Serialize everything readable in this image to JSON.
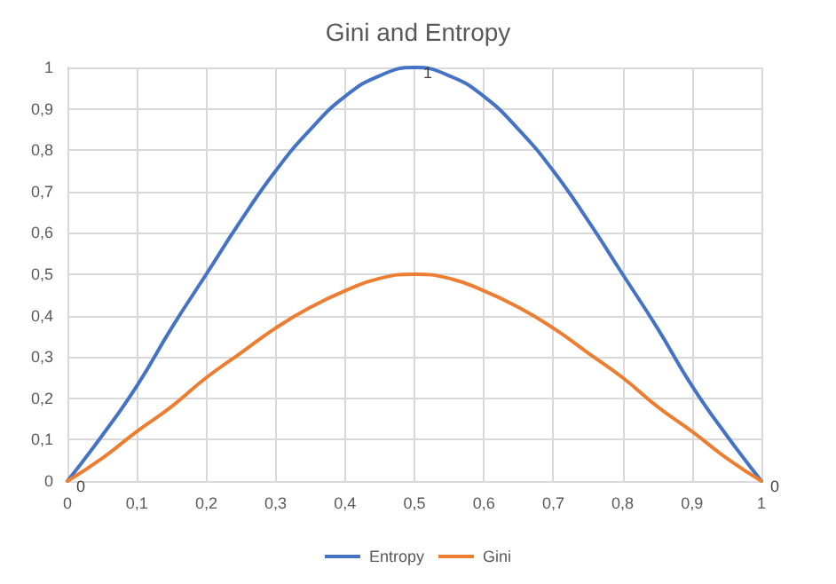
{
  "chart_data": {
    "type": "line",
    "title": "Gini and Entropy",
    "x": [
      0,
      0.05,
      0.1,
      0.15,
      0.2,
      0.25,
      0.3,
      0.35,
      0.4,
      0.45,
      0.5,
      0.55,
      0.6,
      0.65,
      0.7,
      0.75,
      0.8,
      0.85,
      0.9,
      0.95,
      1
    ],
    "series": [
      {
        "name": "Entropy",
        "color": "#4472c4",
        "values": [
          0,
          0.11,
          0.23,
          0.37,
          0.5,
          0.63,
          0.75,
          0.85,
          0.93,
          0.98,
          1,
          0.98,
          0.93,
          0.85,
          0.75,
          0.63,
          0.5,
          0.37,
          0.23,
          0.11,
          0
        ],
        "value_labels": [
          "0",
          null,
          null,
          null,
          null,
          null,
          null,
          null,
          null,
          null,
          "1",
          null,
          null,
          null,
          null,
          null,
          null,
          null,
          null,
          null,
          "0"
        ]
      },
      {
        "name": "Gini",
        "color": "#ed7d31",
        "values": [
          0,
          0.055,
          0.12,
          0.18,
          0.25,
          0.31,
          0.37,
          0.42,
          0.46,
          0.49,
          0.5,
          0.49,
          0.46,
          0.42,
          0.37,
          0.31,
          0.25,
          0.18,
          0.12,
          0.055,
          0
        ]
      }
    ],
    "xlim": [
      0,
      1
    ],
    "xticks": [
      {
        "value": 0,
        "label": "0"
      },
      {
        "value": 0.1,
        "label": "0,1"
      },
      {
        "value": 0.2,
        "label": "0,2"
      },
      {
        "value": 0.3,
        "label": "0,3"
      },
      {
        "value": 0.4,
        "label": "0,4"
      },
      {
        "value": 0.5,
        "label": "0,5"
      },
      {
        "value": 0.6,
        "label": "0,6"
      },
      {
        "value": 0.7,
        "label": "0,7"
      },
      {
        "value": 0.8,
        "label": "0,8"
      },
      {
        "value": 0.9,
        "label": "0,9"
      },
      {
        "value": 1,
        "label": "1"
      }
    ],
    "ylim": [
      0,
      1
    ],
    "yticks": [
      {
        "value": 0,
        "label": "0"
      },
      {
        "value": 0.1,
        "label": "0,1"
      },
      {
        "value": 0.2,
        "label": "0,2"
      },
      {
        "value": 0.3,
        "label": "0,3"
      },
      {
        "value": 0.4,
        "label": "0,4"
      },
      {
        "value": 0.5,
        "label": "0,5"
      },
      {
        "value": 0.6,
        "label": "0,6"
      },
      {
        "value": 0.7,
        "label": "0,7"
      },
      {
        "value": 0.8,
        "label": "0,8"
      },
      {
        "value": 0.9,
        "label": "0,9"
      },
      {
        "value": 1,
        "label": "1"
      }
    ],
    "grid": true,
    "legend": "bottom",
    "marker": "none",
    "line_style": "solid"
  }
}
